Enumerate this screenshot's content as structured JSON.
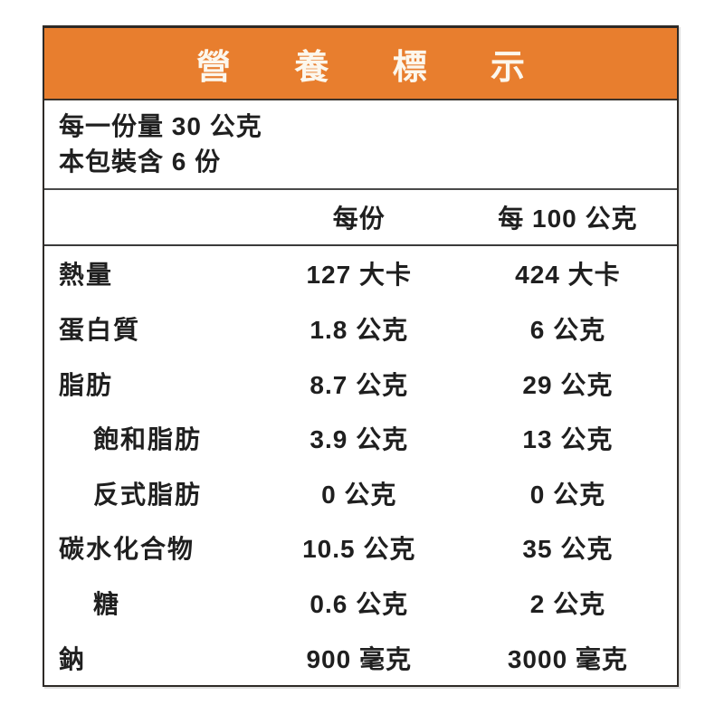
{
  "label": {
    "title": "營養標示",
    "serving_info": {
      "line1": "每一份量 30 公克",
      "line2": "本包裝含 6 份"
    },
    "columns": {
      "per_serving": "每份",
      "per_100g": "每 100 公克"
    },
    "rows": [
      {
        "name": "熱量",
        "per_serving": "127 大卡",
        "per_100g": "424 大卡"
      },
      {
        "name": "蛋白質",
        "per_serving": "1.8 公克",
        "per_100g": "6 公克"
      },
      {
        "name": "脂肪",
        "per_serving": "8.7 公克",
        "per_100g": "29 公克"
      },
      {
        "name": "飽和脂肪",
        "per_serving": "3.9 公克",
        "per_100g": "13 公克"
      },
      {
        "name": "反式脂肪",
        "per_serving": "0 公克",
        "per_100g": "0 公克"
      },
      {
        "name": "碳水化合物",
        "per_serving": "10.5 公克",
        "per_100g": "35 公克"
      },
      {
        "name": "糖",
        "per_serving": "0.6 公克",
        "per_100g": "2 公克"
      },
      {
        "name": "鈉",
        "per_serving": "900 毫克",
        "per_100g": "3000 毫克"
      }
    ],
    "colors": {
      "header_bg": "#E87E2E",
      "header_text": "#FCF7ED",
      "body_text": "#1F1F1F",
      "border": "#2E2A26"
    }
  }
}
